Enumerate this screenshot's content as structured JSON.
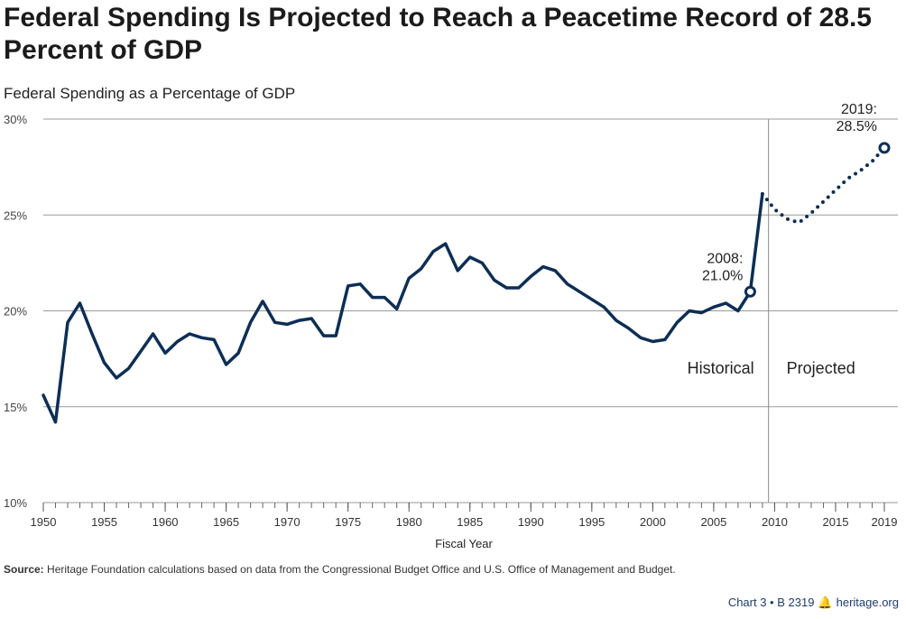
{
  "header": {
    "title": "Federal Spending Is Projected to Reach a Peacetime Record of 28.5 Percent of GDP",
    "subtitle": "Federal Spending as a Percentage of GDP"
  },
  "footer": {
    "source_label": "Source:",
    "source_text": "Heritage Foundation calculations based on data from the Congressional Budget Office and U.S. Office of Management and Budget.",
    "chart_id": "Chart 3 • B 2319",
    "site": "heritage.org"
  },
  "colors": {
    "line": "#0d2e55",
    "grid": "#9a9a9a",
    "divider": "#8a8a8a"
  },
  "chart_data": {
    "type": "line",
    "title": "Federal Spending Is Projected to Reach a Peacetime Record of 28.5 Percent of GDP",
    "subtitle": "Federal Spending as a Percentage of GDP",
    "xlabel": "Fiscal Year",
    "ylabel": "",
    "xlim": [
      1950,
      2019
    ],
    "ylim": [
      10,
      30
    ],
    "yticks": [
      "10%",
      "15%",
      "20%",
      "25%",
      "30%"
    ],
    "xticks": [
      "1950",
      "1955",
      "1960",
      "1965",
      "1970",
      "1975",
      "1980",
      "1985",
      "1990",
      "1995",
      "2000",
      "2005",
      "2010",
      "2015",
      "2019"
    ],
    "grid": true,
    "divider_x": 2009.5,
    "region_labels": [
      "Historical",
      "Projected"
    ],
    "series": [
      {
        "style": "solid",
        "x": [
          1950,
          1951,
          1952,
          1953,
          1954,
          1955,
          1956,
          1957,
          1958,
          1959,
          1960,
          1961,
          1962,
          1963,
          1964,
          1965,
          1966,
          1967,
          1968,
          1969,
          1970,
          1971,
          1972,
          1973,
          1974,
          1975,
          1976,
          1977,
          1978,
          1979,
          1980,
          1981,
          1982,
          1983,
          1984,
          1985,
          1986,
          1987,
          1988,
          1989,
          1990,
          1991,
          1992,
          1993,
          1994,
          1995,
          1996,
          1997,
          1998,
          1999,
          2000,
          2001,
          2002,
          2003,
          2004,
          2005,
          2006,
          2007,
          2008,
          2009
        ],
        "y": [
          15.6,
          14.2,
          19.4,
          20.4,
          18.8,
          17.3,
          16.5,
          17.0,
          17.9,
          18.8,
          17.8,
          18.4,
          18.8,
          18.6,
          18.5,
          17.2,
          17.8,
          19.4,
          20.5,
          19.4,
          19.3,
          19.5,
          19.6,
          18.7,
          18.7,
          21.3,
          21.4,
          20.7,
          20.7,
          20.1,
          21.7,
          22.2,
          23.1,
          23.5,
          22.1,
          22.8,
          22.5,
          21.6,
          21.2,
          21.2,
          21.8,
          22.3,
          22.1,
          21.4,
          21.0,
          20.6,
          20.2,
          19.5,
          19.1,
          18.6,
          18.4,
          18.5,
          19.4,
          20.0,
          19.9,
          20.2,
          20.4,
          20.0,
          21.0,
          26.1
        ]
      },
      {
        "style": "dotted",
        "x": [
          2009,
          2010,
          2011,
          2012,
          2013,
          2014,
          2015,
          2016,
          2017,
          2018,
          2019
        ],
        "y": [
          26.1,
          25.3,
          24.8,
          24.6,
          25.1,
          25.7,
          26.3,
          26.9,
          27.3,
          27.8,
          28.5
        ]
      }
    ],
    "annotations": [
      {
        "year": "2008:",
        "value": "21.0%",
        "x": 2008,
        "y": 21.0
      },
      {
        "year": "2019:",
        "value": "28.5%",
        "x": 2019,
        "y": 28.5
      }
    ]
  }
}
